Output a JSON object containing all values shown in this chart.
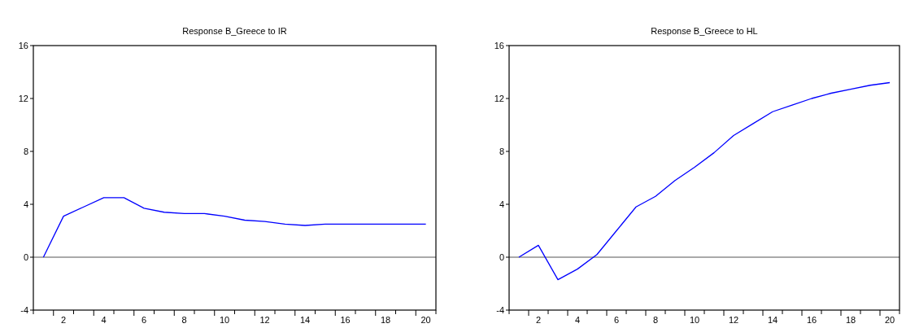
{
  "chart_data": [
    {
      "type": "line",
      "title": "Response B_Greece to IR",
      "categories": [
        null,
        "2",
        null,
        "4",
        null,
        "6",
        null,
        "8",
        null,
        "10",
        null,
        "12",
        null,
        "14",
        null,
        "16",
        null,
        "18",
        null,
        "20"
      ],
      "series": [
        {
          "color": "#0000ff",
          "values": [
            0,
            3.1,
            3.8,
            4.5,
            4.5,
            3.7,
            3.4,
            3.3,
            3.3,
            3.1,
            2.8,
            2.7,
            2.5,
            2.4,
            2.5,
            2.5,
            2.5,
            2.5,
            2.5,
            2.5
          ]
        }
      ],
      "ylim": [
        -4,
        16
      ],
      "yticks": [
        -4,
        0,
        4,
        8,
        12,
        16
      ],
      "ref_lines": [
        {
          "axis": "y",
          "value": 0,
          "color": "#555555"
        }
      ]
    },
    {
      "type": "line",
      "title": "Response B_Greece to HL",
      "categories": [
        null,
        "2",
        null,
        "4",
        null,
        "6",
        null,
        "8",
        null,
        "10",
        null,
        "12",
        null,
        "14",
        null,
        "16",
        null,
        "18",
        null,
        "20"
      ],
      "series": [
        {
          "color": "#0000ff",
          "values": [
            0,
            0.9,
            -1.7,
            -0.9,
            0.2,
            2.0,
            3.8,
            4.6,
            5.8,
            6.8,
            7.9,
            9.2,
            10.1,
            11.0,
            11.5,
            12.0,
            12.4,
            12.7,
            13.0,
            13.2
          ]
        }
      ],
      "ylim": [
        -4,
        16
      ],
      "yticks": [
        -4,
        0,
        4,
        8,
        12,
        16
      ],
      "ref_lines": [
        {
          "axis": "y",
          "value": 0,
          "color": "#555555"
        }
      ]
    }
  ]
}
